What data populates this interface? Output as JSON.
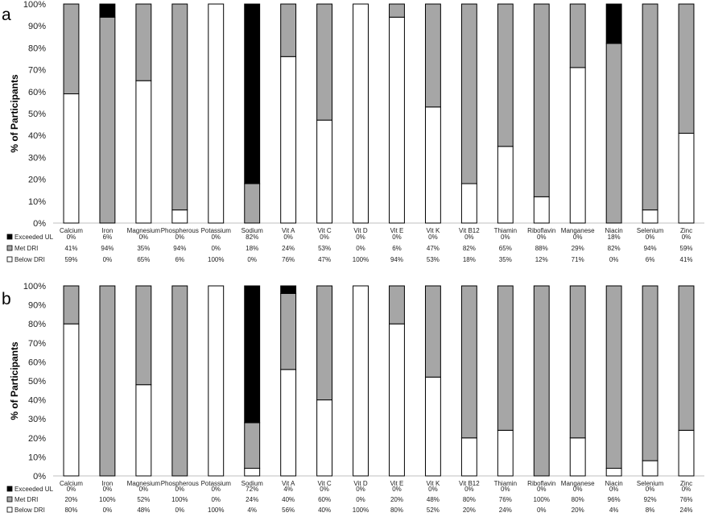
{
  "chart_data": [
    {
      "type": "bar",
      "panel_label": "a",
      "ylabel": "% of Participants",
      "ylim": [
        0,
        100
      ],
      "yticks": [
        "0%",
        "10%",
        "20%",
        "30%",
        "40%",
        "50%",
        "60%",
        "70%",
        "80%",
        "90%",
        "100%"
      ],
      "categories": [
        "Calcium",
        "Iron",
        "Magnesium",
        "Phospherous",
        "Potassium",
        "Sodium",
        "Vit A",
        "Vit C",
        "Vit D",
        "Vit E",
        "Vit K",
        "Vit B12",
        "Thiamin",
        "Riboflavin",
        "Manganese",
        "Niacin",
        "Selenium",
        "Zinc"
      ],
      "series": [
        {
          "name": "Exceeded UL",
          "color": "#000000",
          "values": [
            0,
            6,
            0,
            0,
            0,
            82,
            0,
            0,
            0,
            0,
            0,
            0,
            0,
            0,
            0,
            18,
            0,
            0
          ],
          "labels": [
            "0%",
            "6%",
            "0%",
            "0%",
            "0%",
            "82%",
            "0%",
            "0%",
            "0%",
            "0%",
            "0%",
            "0%",
            "0%",
            "0%",
            "0%",
            "18%",
            "0%",
            "0%"
          ]
        },
        {
          "name": "Met DRI",
          "color": "#a6a6a6",
          "values": [
            41,
            94,
            35,
            94,
            0,
            18,
            24,
            53,
            0,
            6,
            47,
            82,
            65,
            88,
            29,
            82,
            94,
            59
          ],
          "labels": [
            "41%",
            "94%",
            "35%",
            "94%",
            "0%",
            "18%",
            "24%",
            "53%",
            "0%",
            "6%",
            "47%",
            "82%",
            "65%",
            "88%",
            "29%",
            "82%",
            "94%",
            "59%"
          ]
        },
        {
          "name": "Below DRI",
          "color": "#ffffff",
          "values": [
            59,
            0,
            65,
            6,
            100,
            0,
            76,
            47,
            100,
            94,
            53,
            18,
            35,
            12,
            71,
            0,
            6,
            41
          ],
          "labels": [
            "59%",
            "0%",
            "65%",
            "6%",
            "100%",
            "0%",
            "76%",
            "47%",
            "100%",
            "94%",
            "53%",
            "18%",
            "35%",
            "12%",
            "71%",
            "0%",
            "6%",
            "41%"
          ]
        }
      ]
    },
    {
      "type": "bar",
      "panel_label": "b",
      "ylabel": "% of Participants",
      "ylim": [
        0,
        100
      ],
      "yticks": [
        "0%",
        "10%",
        "20%",
        "30%",
        "40%",
        "50%",
        "60%",
        "70%",
        "80%",
        "90%",
        "100%"
      ],
      "categories": [
        "Calcium",
        "Iron",
        "Magnesium",
        "Phospherous",
        "Potassium",
        "Sodium",
        "Vit A",
        "Vit C",
        "Vit D",
        "Vit E",
        "Vit K",
        "Vit B12",
        "Thiamin",
        "Riboflavin",
        "Manganese",
        "Niacin",
        "Selenium",
        "Zinc"
      ],
      "series": [
        {
          "name": "Exceeded UL",
          "color": "#000000",
          "values": [
            0,
            0,
            0,
            0,
            0,
            72,
            4,
            0,
            0,
            0,
            0,
            0,
            0,
            0,
            0,
            0,
            0,
            0
          ],
          "labels": [
            "0%",
            "0%",
            "0%",
            "0%",
            "0%",
            "72%",
            "4%",
            "0%",
            "0%",
            "0%",
            "0%",
            "0%",
            "0%",
            "0%",
            "0%",
            "0%",
            "0%",
            "0%"
          ]
        },
        {
          "name": "Met DRI",
          "color": "#a6a6a6",
          "values": [
            20,
            100,
            52,
            100,
            0,
            24,
            40,
            60,
            0,
            20,
            48,
            80,
            76,
            100,
            80,
            96,
            92,
            76
          ],
          "labels": [
            "20%",
            "100%",
            "52%",
            "100%",
            "0%",
            "24%",
            "40%",
            "60%",
            "0%",
            "20%",
            "48%",
            "80%",
            "76%",
            "100%",
            "80%",
            "96%",
            "92%",
            "76%"
          ]
        },
        {
          "name": "Below DRI",
          "color": "#ffffff",
          "values": [
            80,
            0,
            48,
            0,
            100,
            4,
            56,
            40,
            100,
            80,
            52,
            20,
            24,
            0,
            20,
            4,
            8,
            24
          ],
          "labels": [
            "80%",
            "0%",
            "48%",
            "0%",
            "100%",
            "4%",
            "56%",
            "40%",
            "100%",
            "80%",
            "52%",
            "20%",
            "24%",
            "0%",
            "20%",
            "4%",
            "8%",
            "24%"
          ]
        }
      ]
    }
  ]
}
